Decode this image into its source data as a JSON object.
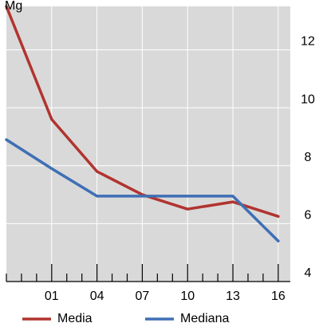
{
  "chart_data": {
    "type": "line",
    "top_label": "Mg",
    "x": [
      1998,
      2001,
      2004,
      2007,
      2010,
      2013,
      2016
    ],
    "x_tick_labels": [
      {
        "x": 2001,
        "label": "01"
      },
      {
        "x": 2004,
        "label": "04"
      },
      {
        "x": 2007,
        "label": "07"
      },
      {
        "x": 2010,
        "label": "10"
      },
      {
        "x": 2013,
        "label": "13"
      },
      {
        "x": 2016,
        "label": "16"
      }
    ],
    "xlim": [
      1998,
      2016.8
    ],
    "ylim": [
      4,
      13.5
    ],
    "y_ticks": [
      {
        "y": 4,
        "label": "4"
      },
      {
        "y": 6,
        "label": "6"
      },
      {
        "y": 8,
        "label": "8"
      },
      {
        "y": 10,
        "label": "10"
      },
      {
        "y": 12,
        "label": "12"
      }
    ],
    "y_axis_side": "right",
    "grid": true,
    "legend_position": "bottom",
    "series": [
      {
        "name": "Media",
        "color": "#b1342f",
        "x": [
          1998,
          2001,
          2004,
          2007,
          2010,
          2013,
          2016
        ],
        "values": [
          13.5,
          9.6,
          7.8,
          7.0,
          6.5,
          6.75,
          6.25
        ]
      },
      {
        "name": "Mediana",
        "color": "#3f6fb5",
        "x": [
          1998,
          2001,
          2004,
          2007,
          2010,
          2013,
          2016
        ],
        "values": [
          8.9,
          7.9,
          6.95,
          6.95,
          6.95,
          6.95,
          5.4
        ]
      }
    ]
  },
  "colors": {
    "plot_background": "#d9d9d9",
    "grid": "#ffffff",
    "axis": "#000000"
  }
}
